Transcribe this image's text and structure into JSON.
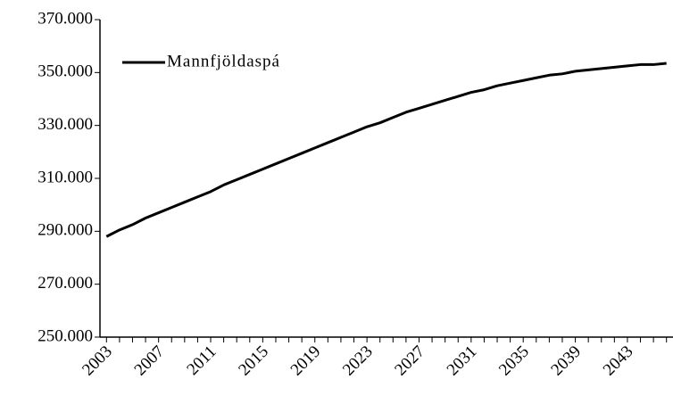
{
  "chart_data": {
    "type": "line",
    "categories": [
      "2003",
      null,
      null,
      null,
      "2007",
      null,
      null,
      null,
      "2011",
      null,
      null,
      null,
      "2015",
      null,
      null,
      null,
      "2019",
      null,
      null,
      null,
      "2023",
      null,
      null,
      null,
      "2027",
      null,
      null,
      null,
      "2031",
      null,
      null,
      null,
      "2035",
      null,
      null,
      null,
      "2039",
      null,
      null,
      null,
      "2043",
      null,
      null,
      null
    ],
    "series": [
      {
        "name": "Mannfjöldaspá",
        "color": "#000000",
        "values": [
          288000,
          290500,
          292500,
          295000,
          297000,
          299000,
          301000,
          303000,
          305000,
          307500,
          309500,
          311500,
          313500,
          315500,
          317500,
          319500,
          321500,
          323500,
          325500,
          327500,
          329500,
          331000,
          333000,
          335000,
          336500,
          338000,
          339500,
          341000,
          342500,
          343500,
          345000,
          346000,
          347000,
          348000,
          349000,
          349500,
          350500,
          351000,
          351500,
          352000,
          352500,
          353000,
          353000,
          353500
        ]
      }
    ],
    "ylim": [
      250000,
      370000
    ],
    "yticks": [
      {
        "value": 250000,
        "label": "250.000"
      },
      {
        "value": 270000,
        "label": "270.000"
      },
      {
        "value": 290000,
        "label": "290.000"
      },
      {
        "value": 310000,
        "label": "310.000"
      },
      {
        "value": 330000,
        "label": "330.000"
      },
      {
        "value": 350000,
        "label": "350.000"
      },
      {
        "value": 370000,
        "label": "370.000"
      }
    ],
    "grid": false,
    "legend": "upper left"
  }
}
